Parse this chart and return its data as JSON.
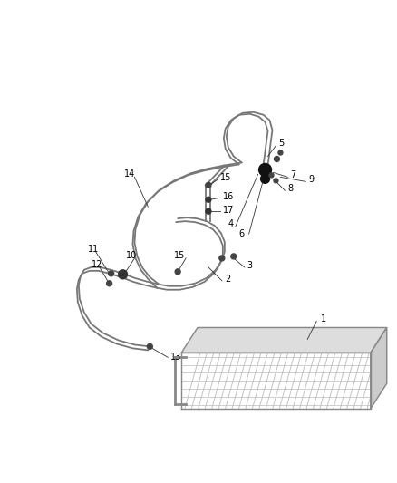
{
  "bg_color": "#ffffff",
  "lc_tube": "#777777",
  "lc_label": "#000000",
  "figsize": [
    4.38,
    5.33
  ],
  "dpi": 100,
  "lw_tube": 1.3,
  "label_fs": 7.0
}
